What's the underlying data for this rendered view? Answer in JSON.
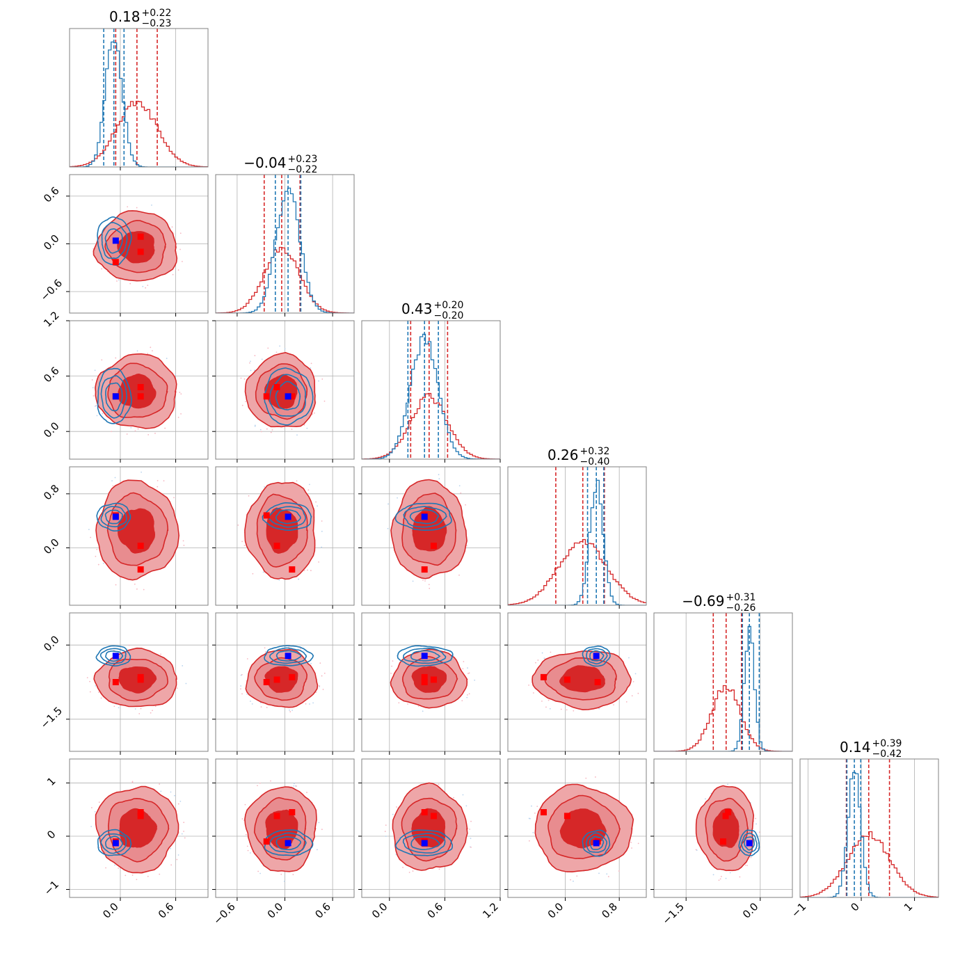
{
  "chart_data": {
    "type": "corner",
    "colors": {
      "series_a": "#d62728",
      "series_b": "#1f77b4",
      "truth": "#0000ff",
      "markers": "#ff0000",
      "grid": "#b0b0b0",
      "frame": "#808080"
    },
    "series": [
      {
        "color": "#d62728"
      },
      {
        "color": "#1f77b4"
      }
    ],
    "grid": true,
    "params": [
      {
        "range": [
          -0.55,
          0.95
        ],
        "ticks": [
          0.0,
          0.6
        ],
        "tick_labels": [
          "0.0",
          "0.6"
        ],
        "left_ticks": [],
        "left_tick_labels": [],
        "title": {
          "median": "0.18",
          "plus": "+0.22",
          "minus": "−0.23"
        },
        "truth": -0.05,
        "a": {
          "mean": 0.18,
          "sd": 0.22,
          "q": [
            -0.05,
            0.18,
            0.4
          ]
        },
        "b": {
          "mean": -0.07,
          "sd": 0.09,
          "q": [
            -0.18,
            -0.07,
            0.04
          ]
        },
        "markers": [
          0.22,
          0.22,
          -0.05
        ]
      },
      {
        "range": [
          -0.87,
          0.87
        ],
        "ticks": [
          -0.6,
          0.0,
          0.6
        ],
        "tick_labels": [
          "−0.6",
          "0.0",
          "0.6"
        ],
        "left_ticks": [
          -0.6,
          0.0,
          0.6
        ],
        "left_tick_labels": [
          "−0.6",
          "0.0",
          "0.6"
        ],
        "title": {
          "median": "−0.04",
          "plus": "+0.23",
          "minus": "−0.22"
        },
        "truth": 0.04,
        "a": {
          "mean": -0.04,
          "sd": 0.22,
          "q": [
            -0.26,
            -0.04,
            0.19
          ]
        },
        "b": {
          "mean": 0.04,
          "sd": 0.15,
          "q": [
            -0.12,
            0.04,
            0.2
          ]
        },
        "markers": [
          -0.1,
          0.09,
          -0.23
        ]
      },
      {
        "range": [
          -0.3,
          1.2
        ],
        "ticks": [
          0.0,
          0.6,
          1.2
        ],
        "tick_labels": [
          "0.0",
          "0.6",
          "1.2"
        ],
        "left_ticks": [
          0.0,
          0.6,
          1.2
        ],
        "left_tick_labels": [
          "0.0",
          "0.6",
          "1.2"
        ],
        "title": {
          "median": "0.43",
          "plus": "+0.20",
          "minus": "−0.20"
        },
        "truth": 0.38,
        "a": {
          "mean": 0.43,
          "sd": 0.2,
          "q": [
            0.23,
            0.43,
            0.63
          ]
        },
        "b": {
          "mean": 0.38,
          "sd": 0.15,
          "q": [
            0.2,
            0.38,
            0.53
          ]
        },
        "markers": [
          0.48,
          0.38,
          0.38
        ]
      },
      {
        "range": [
          -0.85,
          1.2
        ],
        "ticks": [
          0.0,
          0.8
        ],
        "tick_labels": [
          "0.0",
          "0.8"
        ],
        "left_ticks": [
          0.0,
          0.8
        ],
        "left_tick_labels": [
          "0.0",
          "0.8"
        ],
        "title": {
          "median": "0.26",
          "plus": "+0.32",
          "minus": "−0.40"
        },
        "truth": 0.46,
        "a": {
          "mean": 0.26,
          "sd": 0.36,
          "q": [
            -0.14,
            0.26,
            0.58
          ]
        },
        "b": {
          "mean": 0.46,
          "sd": 0.1,
          "q": [
            0.33,
            0.46,
            0.57
          ]
        },
        "markers": [
          0.03,
          -0.32,
          0.48
        ]
      },
      {
        "range": [
          -2.15,
          0.65
        ],
        "ticks": [
          -1.5,
          0.0
        ],
        "tick_labels": [
          "−1.5",
          "0.0"
        ],
        "left_ticks": [
          -1.5,
          0.0
        ],
        "left_tick_labels": [
          "−1.5",
          "0.0"
        ],
        "title": {
          "median": "−0.69",
          "plus": "+0.31",
          "minus": "−0.26"
        },
        "truth": -0.22,
        "a": {
          "mean": -0.69,
          "sd": 0.29,
          "q": [
            -0.95,
            -0.69,
            -0.38
          ]
        },
        "b": {
          "mean": -0.22,
          "sd": 0.1,
          "q": [
            -0.36,
            -0.22,
            -0.02
          ]
        },
        "markers": [
          -0.7,
          -0.65,
          -0.75
        ]
      },
      {
        "range": [
          -1.15,
          1.45
        ],
        "ticks": [
          -1,
          0,
          1
        ],
        "tick_labels": [
          "−1",
          "0",
          "1"
        ],
        "left_ticks": [
          -1,
          0,
          1
        ],
        "left_tick_labels": [
          "−1",
          "0",
          "1"
        ],
        "title": {
          "median": "0.14",
          "plus": "+0.39",
          "minus": "−0.42"
        },
        "truth": -0.13,
        "a": {
          "mean": 0.14,
          "sd": 0.4,
          "q": [
            -0.28,
            0.14,
            0.53
          ]
        },
        "b": {
          "mean": -0.13,
          "sd": 0.12,
          "q": [
            -0.27,
            -0.13,
            -0.01
          ]
        },
        "markers": [
          0.38,
          0.45,
          -0.1
        ]
      }
    ]
  }
}
